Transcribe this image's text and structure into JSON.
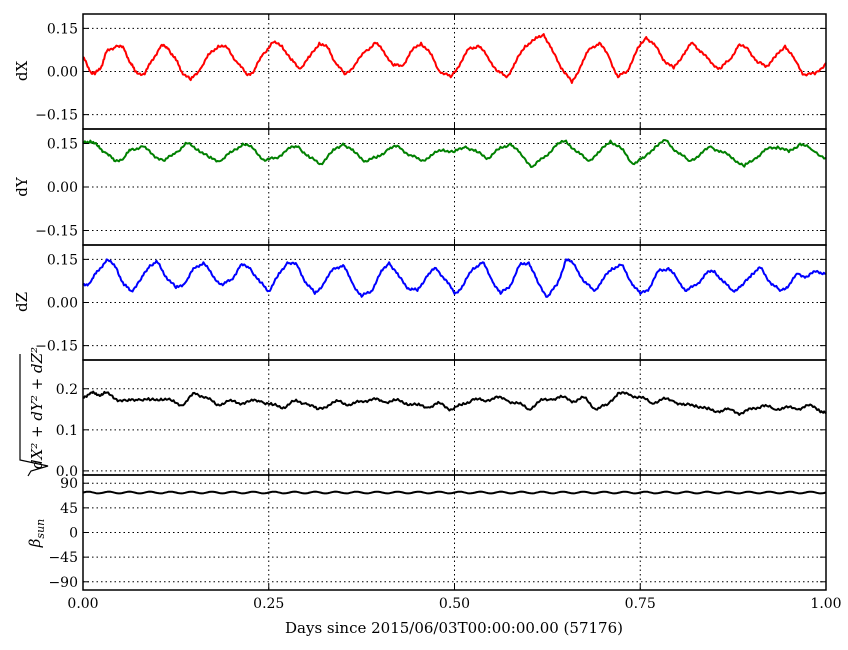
{
  "chart_data": {
    "type": "line",
    "xlabel": "Days since 2015/06/03T00:00:00.00 (57176)",
    "xlim": [
      0.0,
      1.0
    ],
    "xticks": [
      "0.00",
      "0.25",
      "0.50",
      "0.75",
      "1.00"
    ],
    "grid": true,
    "panels": [
      {
        "key": "dX",
        "ylabel": "dX",
        "ylim": [
          -0.2,
          0.2
        ],
        "yticks": [
          "0.15",
          "0.00",
          "−0.15"
        ],
        "ytick_values": [
          0.15,
          0.0,
          -0.15
        ],
        "color": "#ff0000",
        "series": {
          "x": [
            0.0,
            0.01,
            0.016,
            0.025,
            0.032,
            0.045,
            0.055,
            0.064,
            0.07,
            0.083,
            0.093,
            0.105,
            0.115,
            0.125,
            0.133,
            0.145,
            0.158,
            0.17,
            0.182,
            0.195,
            0.208,
            0.22,
            0.23,
            0.242,
            0.255,
            0.268,
            0.28,
            0.292,
            0.305,
            0.318,
            0.33,
            0.34,
            0.352,
            0.365,
            0.38,
            0.393,
            0.405,
            0.418,
            0.43,
            0.442,
            0.455,
            0.468,
            0.48,
            0.495,
            0.508,
            0.52,
            0.532,
            0.545,
            0.558,
            0.57,
            0.582,
            0.595,
            0.608,
            0.62,
            0.632,
            0.645,
            0.658,
            0.67,
            0.682,
            0.695,
            0.708,
            0.72,
            0.732,
            0.745,
            0.758,
            0.77,
            0.782,
            0.795,
            0.808,
            0.82,
            0.832,
            0.845,
            0.858,
            0.87,
            0.882,
            0.895,
            0.908,
            0.92,
            0.932,
            0.945,
            0.958,
            0.97,
            0.985,
            1.0
          ],
          "y": [
            0.05,
            0.0,
            -0.01,
            0.02,
            0.07,
            0.09,
            0.08,
            0.03,
            0.0,
            -0.01,
            0.04,
            0.09,
            0.08,
            0.04,
            0.0,
            -0.03,
            0.01,
            0.06,
            0.09,
            0.08,
            0.03,
            -0.01,
            0.0,
            0.06,
            0.1,
            0.09,
            0.04,
            0.01,
            0.05,
            0.1,
            0.08,
            0.03,
            -0.01,
            0.02,
            0.07,
            0.1,
            0.07,
            0.02,
            0.02,
            0.07,
            0.1,
            0.06,
            0.0,
            -0.02,
            0.03,
            0.08,
            0.09,
            0.05,
            0.0,
            -0.02,
            0.03,
            0.09,
            0.11,
            0.13,
            0.07,
            0.01,
            -0.04,
            0.02,
            0.08,
            0.1,
            0.05,
            -0.02,
            0.0,
            0.07,
            0.12,
            0.09,
            0.04,
            0.01,
            0.06,
            0.1,
            0.07,
            0.03,
            0.01,
            0.04,
            0.09,
            0.08,
            0.03,
            0.02,
            0.05,
            0.09,
            0.04,
            -0.01,
            -0.01,
            0.03
          ]
        }
      },
      {
        "key": "dY",
        "ylabel": "dY",
        "ylim": [
          -0.2,
          0.2
        ],
        "yticks": [
          "0.15",
          "0.00",
          "−0.15"
        ],
        "ytick_values": [
          0.15,
          0.0,
          -0.15
        ],
        "color": "#008000",
        "series": {
          "x": [
            0.0,
            0.01,
            0.02,
            0.03,
            0.042,
            0.055,
            0.065,
            0.08,
            0.095,
            0.11,
            0.125,
            0.14,
            0.155,
            0.17,
            0.185,
            0.2,
            0.215,
            0.23,
            0.245,
            0.26,
            0.275,
            0.29,
            0.305,
            0.32,
            0.335,
            0.35,
            0.365,
            0.38,
            0.395,
            0.41,
            0.425,
            0.44,
            0.455,
            0.47,
            0.485,
            0.5,
            0.515,
            0.53,
            0.545,
            0.56,
            0.575,
            0.59,
            0.605,
            0.62,
            0.635,
            0.65,
            0.665,
            0.68,
            0.695,
            0.71,
            0.725,
            0.74,
            0.755,
            0.77,
            0.785,
            0.8,
            0.815,
            0.83,
            0.845,
            0.86,
            0.875,
            0.89,
            0.905,
            0.92,
            0.935,
            0.95,
            0.965,
            0.98,
            1.0
          ],
          "y": [
            0.15,
            0.16,
            0.14,
            0.12,
            0.09,
            0.1,
            0.13,
            0.14,
            0.11,
            0.09,
            0.12,
            0.15,
            0.13,
            0.1,
            0.09,
            0.12,
            0.15,
            0.13,
            0.09,
            0.1,
            0.13,
            0.14,
            0.1,
            0.08,
            0.12,
            0.15,
            0.12,
            0.09,
            0.1,
            0.13,
            0.14,
            0.11,
            0.09,
            0.11,
            0.13,
            0.12,
            0.14,
            0.12,
            0.1,
            0.13,
            0.15,
            0.11,
            0.07,
            0.1,
            0.14,
            0.16,
            0.12,
            0.09,
            0.12,
            0.16,
            0.13,
            0.08,
            0.1,
            0.14,
            0.16,
            0.12,
            0.09,
            0.11,
            0.14,
            0.12,
            0.1,
            0.07,
            0.1,
            0.13,
            0.14,
            0.12,
            0.15,
            0.13,
            0.1
          ]
        }
      },
      {
        "key": "dZ",
        "ylabel": "dZ",
        "ylim": [
          -0.2,
          0.2
        ],
        "yticks": [
          "0.15",
          "0.00",
          "−0.15"
        ],
        "ytick_values": [
          0.15,
          0.0,
          -0.15
        ],
        "color": "#0000ff",
        "series": {
          "x": [
            0.0,
            0.01,
            0.02,
            0.032,
            0.045,
            0.055,
            0.065,
            0.078,
            0.09,
            0.1,
            0.112,
            0.125,
            0.138,
            0.15,
            0.162,
            0.175,
            0.188,
            0.2,
            0.212,
            0.225,
            0.238,
            0.25,
            0.262,
            0.275,
            0.288,
            0.3,
            0.312,
            0.325,
            0.338,
            0.35,
            0.362,
            0.375,
            0.388,
            0.4,
            0.412,
            0.425,
            0.438,
            0.45,
            0.462,
            0.475,
            0.488,
            0.5,
            0.512,
            0.525,
            0.538,
            0.55,
            0.562,
            0.575,
            0.588,
            0.6,
            0.612,
            0.625,
            0.638,
            0.65,
            0.662,
            0.675,
            0.688,
            0.7,
            0.712,
            0.725,
            0.738,
            0.75,
            0.762,
            0.775,
            0.788,
            0.8,
            0.812,
            0.825,
            0.838,
            0.85,
            0.862,
            0.875,
            0.888,
            0.9,
            0.912,
            0.925,
            0.938,
            0.95,
            0.962,
            0.975,
            0.988,
            1.0
          ],
          "y": [
            0.06,
            0.07,
            0.11,
            0.15,
            0.12,
            0.06,
            0.04,
            0.08,
            0.13,
            0.14,
            0.09,
            0.05,
            0.07,
            0.12,
            0.14,
            0.09,
            0.06,
            0.08,
            0.13,
            0.12,
            0.07,
            0.04,
            0.09,
            0.14,
            0.13,
            0.07,
            0.03,
            0.07,
            0.12,
            0.13,
            0.07,
            0.02,
            0.04,
            0.1,
            0.14,
            0.09,
            0.05,
            0.04,
            0.09,
            0.12,
            0.08,
            0.03,
            0.06,
            0.12,
            0.14,
            0.08,
            0.03,
            0.06,
            0.13,
            0.14,
            0.07,
            0.02,
            0.06,
            0.15,
            0.13,
            0.07,
            0.04,
            0.08,
            0.12,
            0.13,
            0.07,
            0.03,
            0.05,
            0.11,
            0.12,
            0.08,
            0.04,
            0.06,
            0.1,
            0.11,
            0.07,
            0.04,
            0.06,
            0.1,
            0.12,
            0.07,
            0.04,
            0.06,
            0.1,
            0.09,
            0.11,
            0.1
          ]
        }
      },
      {
        "key": "dR",
        "ylabel": "√(dX² + dY² + dZ²)",
        "ylim": [
          -0.01,
          0.27
        ],
        "yticks": [
          "0.2",
          "0.1",
          "0.0"
        ],
        "ytick_values": [
          0.2,
          0.1,
          0.0
        ],
        "color": "#000000",
        "series": {
          "x": [
            0.0,
            0.01,
            0.02,
            0.03,
            0.045,
            0.06,
            0.075,
            0.09,
            0.105,
            0.12,
            0.135,
            0.15,
            0.165,
            0.18,
            0.195,
            0.21,
            0.225,
            0.24,
            0.255,
            0.27,
            0.285,
            0.3,
            0.315,
            0.33,
            0.345,
            0.36,
            0.375,
            0.39,
            0.405,
            0.42,
            0.435,
            0.45,
            0.465,
            0.48,
            0.495,
            0.51,
            0.525,
            0.54,
            0.555,
            0.57,
            0.585,
            0.6,
            0.615,
            0.63,
            0.645,
            0.66,
            0.675,
            0.69,
            0.705,
            0.72,
            0.735,
            0.75,
            0.765,
            0.78,
            0.795,
            0.81,
            0.825,
            0.84,
            0.855,
            0.87,
            0.885,
            0.9,
            0.915,
            0.93,
            0.945,
            0.96,
            0.975,
            0.99,
            1.0
          ],
          "y": [
            0.18,
            0.19,
            0.185,
            0.19,
            0.175,
            0.17,
            0.175,
            0.172,
            0.176,
            0.17,
            0.16,
            0.19,
            0.18,
            0.16,
            0.17,
            0.165,
            0.17,
            0.17,
            0.16,
            0.155,
            0.17,
            0.165,
            0.15,
            0.16,
            0.17,
            0.16,
            0.17,
            0.175,
            0.168,
            0.172,
            0.165,
            0.16,
            0.155,
            0.165,
            0.15,
            0.16,
            0.175,
            0.17,
            0.18,
            0.172,
            0.165,
            0.15,
            0.17,
            0.175,
            0.18,
            0.17,
            0.178,
            0.15,
            0.16,
            0.19,
            0.185,
            0.18,
            0.165,
            0.175,
            0.17,
            0.16,
            0.16,
            0.15,
            0.145,
            0.15,
            0.14,
            0.15,
            0.16,
            0.15,
            0.155,
            0.15,
            0.16,
            0.15,
            0.14
          ]
        }
      },
      {
        "key": "beta",
        "ylabel": "βsun",
        "ylim": [
          -105,
          105
        ],
        "yticks": [
          "90",
          "45",
          "0",
          "−45",
          "−90"
        ],
        "ytick_values": [
          90,
          45,
          0,
          -45,
          -90
        ],
        "color": "#000000",
        "series": {
          "x": [
            0.0,
            1.0
          ],
          "y": [
            73,
            73
          ],
          "ripple_amplitude": 1.6,
          "ripple_cycles": 36
        }
      }
    ]
  }
}
